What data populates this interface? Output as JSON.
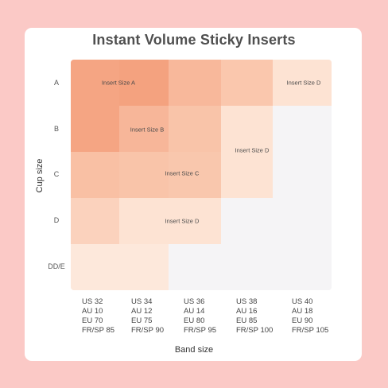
{
  "title": "Instant Volume Sticky Inserts",
  "y_axis_title": "Cup size",
  "x_axis_title": "Band size",
  "cup_sizes": [
    "A",
    "B",
    "C",
    "D",
    "DD/E"
  ],
  "band_sizes": [
    [
      "US 32",
      "AU 10",
      "EU 70",
      "FR/SP 85"
    ],
    [
      "US 34",
      "AU 12",
      "EU 75",
      "FR/SP 90"
    ],
    [
      "US 36",
      "AU 14",
      "EU 80",
      "FR/SP 95"
    ],
    [
      "US 38",
      "AU 16",
      "EU 85",
      "FR/SP 100"
    ],
    [
      "US 40",
      "AU 18",
      "EU 90",
      "FR/SP 105"
    ]
  ],
  "insert_labels": {
    "a": "Insert Size A",
    "b": "Insert Size B",
    "c": "Insert Size C",
    "d_top": "Insert Size D",
    "d_mid": "Insert Size D",
    "d_low": "Insert Size D"
  },
  "colors": {
    "background": "#fbc9c6",
    "card": "#ffffff",
    "size_a": "#f3a07c",
    "size_b": "#f6b597",
    "size_c": "#f9c9ae",
    "size_d": "#fde5d6",
    "empty": "#f5f4f6"
  }
}
